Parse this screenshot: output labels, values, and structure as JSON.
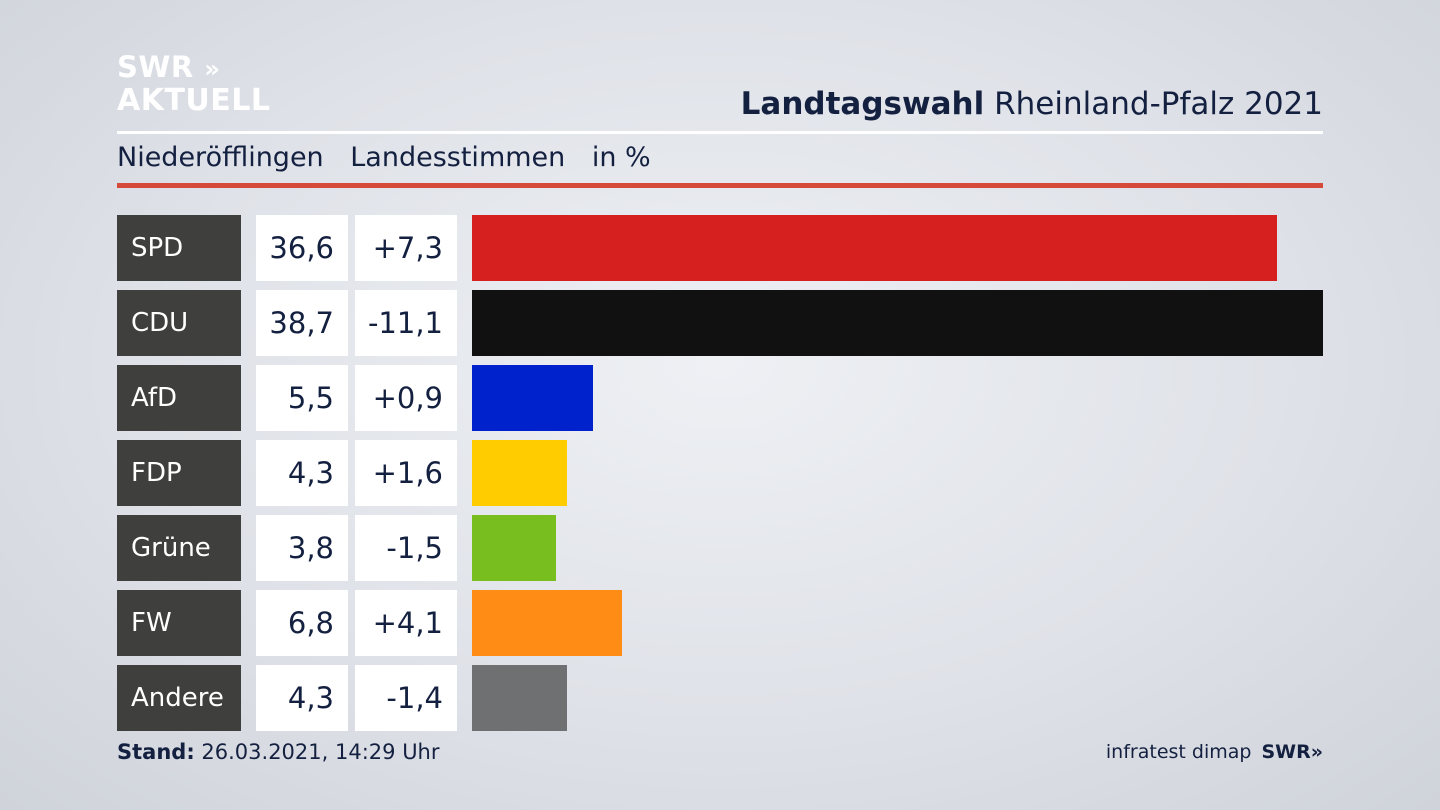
{
  "logo": {
    "line1": "SWR",
    "chevrons": "»",
    "line2": "AKTUELL"
  },
  "header": {
    "title_bold": "Landtagswahl",
    "title_rest": "Rheinland-Pfalz 2021"
  },
  "subheader": {
    "place": "Niederöfflingen",
    "category": "Landesstimmen",
    "unit": "in %"
  },
  "footer": {
    "stand_label": "Stand:",
    "stand_value": "26.03.2021, 14:29 Uhr",
    "source": "infratest dimap",
    "brand": "SWR»"
  },
  "chart_data": {
    "type": "bar",
    "orientation": "horizontal",
    "categories": [
      "SPD",
      "CDU",
      "AfD",
      "FDP",
      "Grüne",
      "FW",
      "Andere"
    ],
    "values": [
      36.6,
      38.7,
      5.5,
      4.3,
      3.8,
      6.8,
      4.3
    ],
    "value_labels": [
      "36,6",
      "38,7",
      "5,5",
      "4,3",
      "3,8",
      "6,8",
      "4,3"
    ],
    "changes": [
      "+7,3",
      "-11,1",
      "+0,9",
      "+1,6",
      "-1,5",
      "+4,1",
      "-1,4"
    ],
    "colors": [
      "#d61f1f",
      "#111111",
      "#0022cc",
      "#ffcc00",
      "#78be1e",
      "#ff8c14",
      "#6f7072"
    ],
    "xlim": [
      0,
      38.7
    ]
  }
}
